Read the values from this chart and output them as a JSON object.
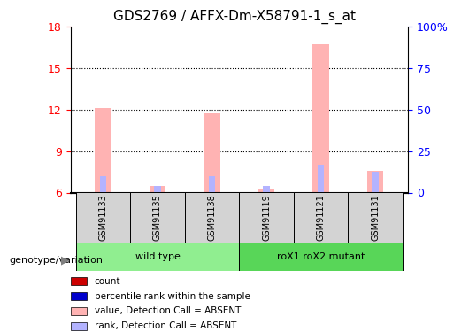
{
  "title": "GDS2769 / AFFX-Dm-X58791-1_s_at",
  "samples": [
    "GSM91133",
    "GSM91135",
    "GSM91138",
    "GSM91119",
    "GSM91121",
    "GSM91131"
  ],
  "groups": [
    "wild type",
    "wild type",
    "wild type",
    "roX1 roX2 mutant",
    "roX1 roX2 mutant",
    "roX1 roX2 mutant"
  ],
  "group_labels": [
    "wild type",
    "roX1 roX2 mutant"
  ],
  "ylim_left": [
    6,
    18
  ],
  "ylim_right": [
    0,
    100
  ],
  "yticks_left": [
    6,
    9,
    12,
    15,
    18
  ],
  "yticks_right": [
    0,
    25,
    50,
    75,
    100
  ],
  "ytick_labels_right": [
    "0",
    "25",
    "50",
    "75",
    "100%"
  ],
  "value_bars": [
    12.1,
    6.5,
    11.7,
    6.3,
    16.7,
    7.6
  ],
  "rank_bars": [
    7.2,
    6.5,
    7.2,
    6.5,
    8.0,
    7.5
  ],
  "bar_color_value": "#ffb3b3",
  "bar_color_rank": "#b3b3ff",
  "count_color": "#cc0000",
  "rank_color": "#0000cc",
  "group_colors": [
    "#90ee90",
    "#2ecc40"
  ],
  "group_bg": [
    "#c8f0c8",
    "#a0e0a0"
  ],
  "legend_items": [
    {
      "label": "count",
      "color": "#cc0000",
      "marker": "s"
    },
    {
      "label": "percentile rank within the sample",
      "color": "#0000cc",
      "marker": "s"
    },
    {
      "label": "value, Detection Call = ABSENT",
      "color": "#ffb3b3",
      "marker": "s"
    },
    {
      "label": "rank, Detection Call = ABSENT",
      "color": "#b3b3ff",
      "marker": "s"
    }
  ]
}
